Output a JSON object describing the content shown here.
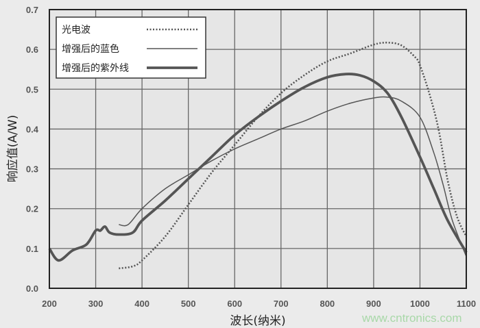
{
  "chart_data": {
    "type": "line",
    "xlabel": "波长(纳米)",
    "ylabel": "响应值(A/W)",
    "xlim": [
      200,
      1100
    ],
    "ylim": [
      0,
      0.7
    ],
    "xticks": [
      "200",
      "300",
      "400",
      "500",
      "600",
      "700",
      "800",
      "900",
      "1000",
      "1100"
    ],
    "yticks": [
      "0.0",
      "0.1",
      "0.2",
      "0.3",
      "0.4",
      "0.5",
      "0.6",
      "0.7"
    ],
    "grid": true,
    "legend_position": "top-left",
    "series": [
      {
        "name": "光电波",
        "style": "dotted",
        "color": "#555555",
        "x": [
          350,
          380,
          400,
          450,
          500,
          550,
          600,
          650,
          700,
          750,
          800,
          850,
          900,
          930,
          960,
          990,
          1000,
          1020,
          1040,
          1060,
          1080,
          1100
        ],
        "y": [
          0.05,
          0.055,
          0.07,
          0.13,
          0.21,
          0.29,
          0.36,
          0.43,
          0.49,
          0.535,
          0.57,
          0.59,
          0.612,
          0.617,
          0.61,
          0.58,
          0.56,
          0.49,
          0.4,
          0.27,
          0.18,
          0.13
        ]
      },
      {
        "name": "增强后的蓝色",
        "style": "thin",
        "color": "#555555",
        "x": [
          350,
          370,
          400,
          450,
          500,
          550,
          600,
          650,
          700,
          750,
          800,
          850,
          900,
          930,
          960,
          1000,
          1030,
          1050,
          1070,
          1100
        ],
        "y": [
          0.16,
          0.16,
          0.2,
          0.25,
          0.285,
          0.32,
          0.35,
          0.375,
          0.4,
          0.42,
          0.445,
          0.465,
          0.478,
          0.48,
          0.47,
          0.43,
          0.34,
          0.26,
          0.17,
          0.08
        ]
      },
      {
        "name": "增强后的紫外线",
        "style": "thick",
        "color": "#555555",
        "x": [
          200,
          220,
          250,
          280,
          300,
          310,
          320,
          330,
          350,
          380,
          400,
          450,
          500,
          550,
          600,
          650,
          700,
          750,
          800,
          840,
          870,
          900,
          930,
          960,
          1000,
          1030,
          1060,
          1100
        ],
        "y": [
          0.1,
          0.07,
          0.095,
          0.11,
          0.145,
          0.145,
          0.155,
          0.14,
          0.135,
          0.14,
          0.17,
          0.22,
          0.275,
          0.33,
          0.385,
          0.43,
          0.47,
          0.505,
          0.53,
          0.538,
          0.535,
          0.52,
          0.49,
          0.43,
          0.33,
          0.25,
          0.17,
          0.09
        ]
      }
    ]
  },
  "watermark": "www.cntronics.com"
}
